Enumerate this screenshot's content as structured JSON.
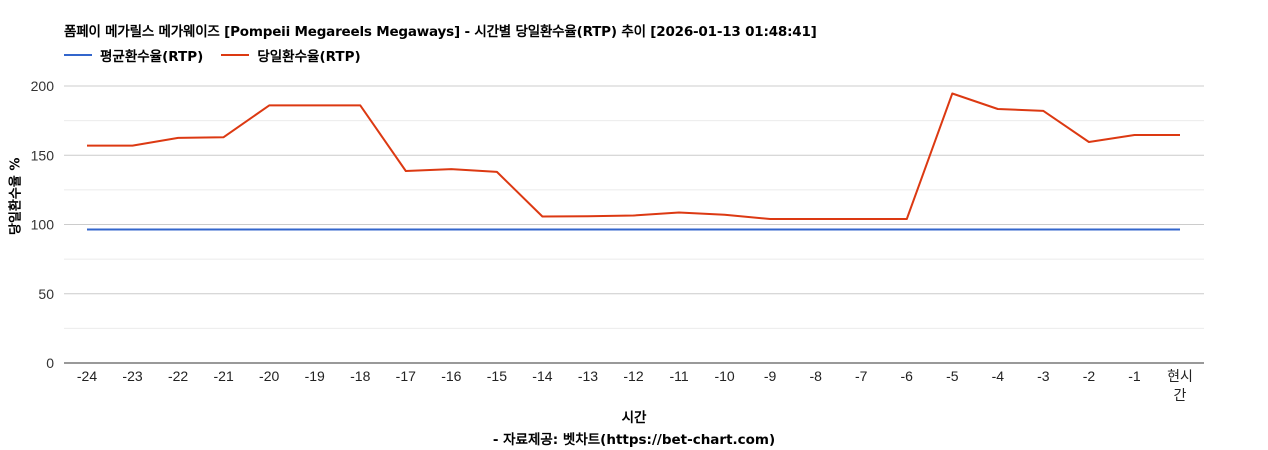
{
  "title": "폼페이 메가릴스 메가웨이즈 [Pompeii Megareels Megaways] - 시간별 당일환수율(RTP) 추이 [2026-01-13 01:48:41]",
  "legend": [
    {
      "label": "평균환수율(RTP)",
      "color": "#3366cc"
    },
    {
      "label": "당일환수율(RTP)",
      "color": "#dc3912"
    }
  ],
  "yaxis_label": "당일환수율 %",
  "xaxis_label": "시간",
  "source": "- 자료제공: 벳차트(https://bet-chart.com)",
  "chart_data": {
    "type": "line",
    "title": "폼페이 메가릴스 메가웨이즈 [Pompeii Megareels Megaways] - 시간별 당일환수율(RTP) 추이 [2026-01-13 01:48:41]",
    "xlabel": "시간",
    "ylabel": "당일환수율 %",
    "ylim": [
      0,
      200
    ],
    "yticks": [
      0,
      50,
      100,
      150,
      200
    ],
    "grid": true,
    "legend_position": "top",
    "categories": [
      "-24",
      "-23",
      "-22",
      "-21",
      "-20",
      "-19",
      "-18",
      "-17",
      "-16",
      "-15",
      "-14",
      "-13",
      "-12",
      "-11",
      "-10",
      "-9",
      "-8",
      "-7",
      "-6",
      "-5",
      "-4",
      "-3",
      "-2",
      "-1",
      "현시간"
    ],
    "series": [
      {
        "name": "평균환수율(RTP)",
        "color": "#3366cc",
        "values": [
          96.4,
          96.4,
          96.4,
          96.4,
          96.4,
          96.4,
          96.4,
          96.4,
          96.4,
          96.4,
          96.4,
          96.4,
          96.4,
          96.4,
          96.4,
          96.4,
          96.4,
          96.4,
          96.4,
          96.4,
          96.4,
          96.4,
          96.4,
          96.4,
          96.4
        ]
      },
      {
        "name": "당일환수율(RTP)",
        "color": "#dc3912",
        "values": [
          157,
          157,
          162.5,
          163,
          186,
          186,
          186,
          138.6,
          140,
          138,
          105.8,
          106,
          106.5,
          108.7,
          107,
          104,
          104,
          104,
          104,
          194.6,
          183.4,
          182,
          159.6,
          164.6,
          164.6
        ]
      }
    ]
  }
}
